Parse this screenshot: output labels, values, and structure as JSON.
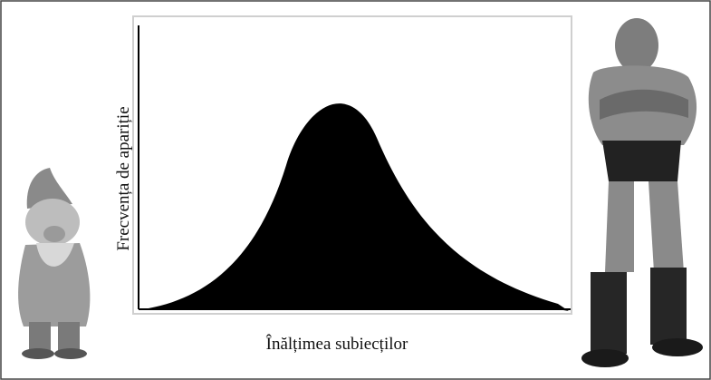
{
  "figure": {
    "y_label": "Frecvența de apariție",
    "x_label": "Înălțimea subiecților"
  }
}
